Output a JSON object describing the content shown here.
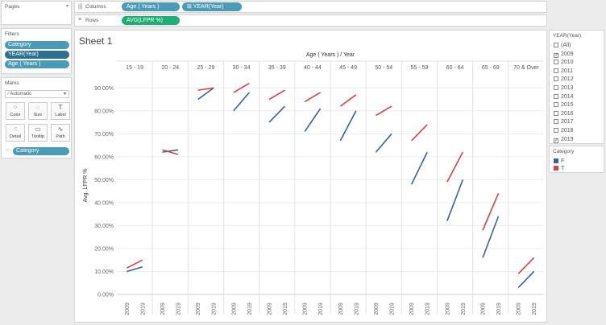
{
  "pages": {
    "title": "Pages"
  },
  "filters": {
    "title": "Filters",
    "items": [
      "Category",
      "YEAR(Year)",
      "Age ( Years )"
    ]
  },
  "marks": {
    "title": "Marks",
    "type": "Automatic",
    "buttons": [
      {
        "label": "Color",
        "icon": "color-icon"
      },
      {
        "label": "Size",
        "icon": "size-icon"
      },
      {
        "label": "Label",
        "icon": "label-icon"
      },
      {
        "label": "Detail",
        "icon": "detail-icon"
      },
      {
        "label": "Tooltip",
        "icon": "tooltip-icon"
      },
      {
        "label": "Path",
        "icon": "path-icon"
      }
    ],
    "color_pill": "Category"
  },
  "shelves": {
    "columns_label": "Columns",
    "rows_label": "Rows",
    "columns_pills": [
      "Age ( Years )",
      "YEAR(Year)"
    ],
    "rows_pills": [
      "AVG(LFPR %)"
    ]
  },
  "sheet": {
    "title": "Sheet 1"
  },
  "year_filter": {
    "title": "YEAR(Year)",
    "items": [
      {
        "label": "(All)",
        "checked": false
      },
      {
        "label": "2009",
        "checked": true
      },
      {
        "label": "2010",
        "checked": false
      },
      {
        "label": "2011",
        "checked": false
      },
      {
        "label": "2012",
        "checked": false
      },
      {
        "label": "2013",
        "checked": false
      },
      {
        "label": "2014",
        "checked": false
      },
      {
        "label": "2015",
        "checked": false
      },
      {
        "label": "2016",
        "checked": false
      },
      {
        "label": "2017",
        "checked": false
      },
      {
        "label": "2018",
        "checked": false
      },
      {
        "label": "2019",
        "checked": true
      }
    ]
  },
  "category_legend": {
    "title": "Category",
    "items": [
      {
        "label": "F",
        "color": "#3d5f9a"
      },
      {
        "label": "T",
        "color": "#d9414a"
      }
    ]
  },
  "chart_data": {
    "type": "line",
    "title": "Age ( Years ) / Year",
    "ylabel": "Avg. LFPR %",
    "ylim": [
      0,
      95
    ],
    "yticks": [
      "0.00%",
      "10.00%",
      "20.00%",
      "30.00%",
      "40.00%",
      "50.00%",
      "60.00%",
      "70.00%",
      "80.00%",
      "90.00%"
    ],
    "x_years": [
      "2009",
      "2019"
    ],
    "panes": [
      {
        "label": "15 - 19",
        "F": [
          10,
          12
        ],
        "T": [
          11.5,
          15
        ]
      },
      {
        "label": "20 - 24",
        "F": [
          62,
          63
        ],
        "T": [
          63,
          61
        ]
      },
      {
        "label": "25 - 29",
        "F": [
          85,
          90
        ],
        "T": [
          89,
          90
        ]
      },
      {
        "label": "30 - 34",
        "F": [
          80,
          88
        ],
        "T": [
          88,
          92
        ]
      },
      {
        "label": "35 - 39",
        "F": [
          75,
          82
        ],
        "T": [
          85,
          89
        ]
      },
      {
        "label": "40 - 44",
        "F": [
          71,
          81
        ],
        "T": [
          84,
          88
        ]
      },
      {
        "label": "45 - 49",
        "F": [
          67,
          80
        ],
        "T": [
          82,
          87
        ]
      },
      {
        "label": "50 - 54",
        "F": [
          62,
          70
        ],
        "T": [
          78,
          82
        ]
      },
      {
        "label": "55 - 59",
        "F": [
          48,
          62
        ],
        "T": [
          67,
          74
        ]
      },
      {
        "label": "60 - 64",
        "F": [
          32,
          50
        ],
        "T": [
          49,
          62
        ]
      },
      {
        "label": "65 - 69",
        "F": [
          16,
          34
        ],
        "T": [
          28,
          44
        ]
      },
      {
        "label": "70 & Over",
        "F": [
          3,
          10
        ],
        "T": [
          9,
          16
        ]
      }
    ],
    "series": [
      {
        "name": "F",
        "color": "#3d5f9a"
      },
      {
        "name": "T",
        "color": "#d9414a"
      }
    ],
    "grid": true
  }
}
